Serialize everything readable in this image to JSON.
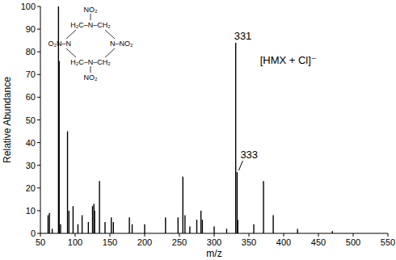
{
  "chart_data": {
    "type": "bar",
    "x_label": "m/z",
    "y_label": "Relative Abundance",
    "x": [
      61,
      63,
      67,
      76,
      77,
      79,
      89,
      91,
      97,
      104,
      110,
      119,
      125,
      127,
      128,
      135,
      143,
      152,
      155,
      178,
      182,
      200,
      230,
      248,
      255,
      258,
      265,
      275,
      281,
      283,
      300,
      318,
      331,
      333,
      334,
      357,
      371,
      385,
      420,
      470
    ],
    "values": [
      8,
      9,
      2,
      100,
      76,
      4,
      45,
      10,
      12,
      4,
      8,
      5,
      12,
      13,
      10,
      23,
      5,
      7,
      5,
      7,
      4,
      4,
      7,
      7,
      25,
      8,
      3,
      6,
      10,
      6,
      3,
      2,
      84,
      27,
      6,
      4,
      23,
      8,
      2,
      1
    ],
    "color": "#000000",
    "xlim": [
      50,
      550
    ],
    "xticks": [
      50,
      100,
      150,
      200,
      250,
      300,
      350,
      400,
      450,
      500,
      550
    ],
    "ylim": [
      0,
      100
    ],
    "yticks": [
      0,
      10,
      20,
      30,
      40,
      50,
      60,
      70,
      80,
      90,
      100
    ],
    "grid": false,
    "annotations": [
      {
        "text": "331",
        "x": 331
      },
      {
        "text": "333",
        "x": 333
      },
      {
        "text": "[HMX + Cl]⁻",
        "x": 331
      }
    ],
    "inset_labels": [
      "NO₂",
      "H₂C–N–CH₂",
      "O₂N–N",
      "N–NO₂",
      "H₂C–N–CH₂",
      "NO₂"
    ]
  }
}
